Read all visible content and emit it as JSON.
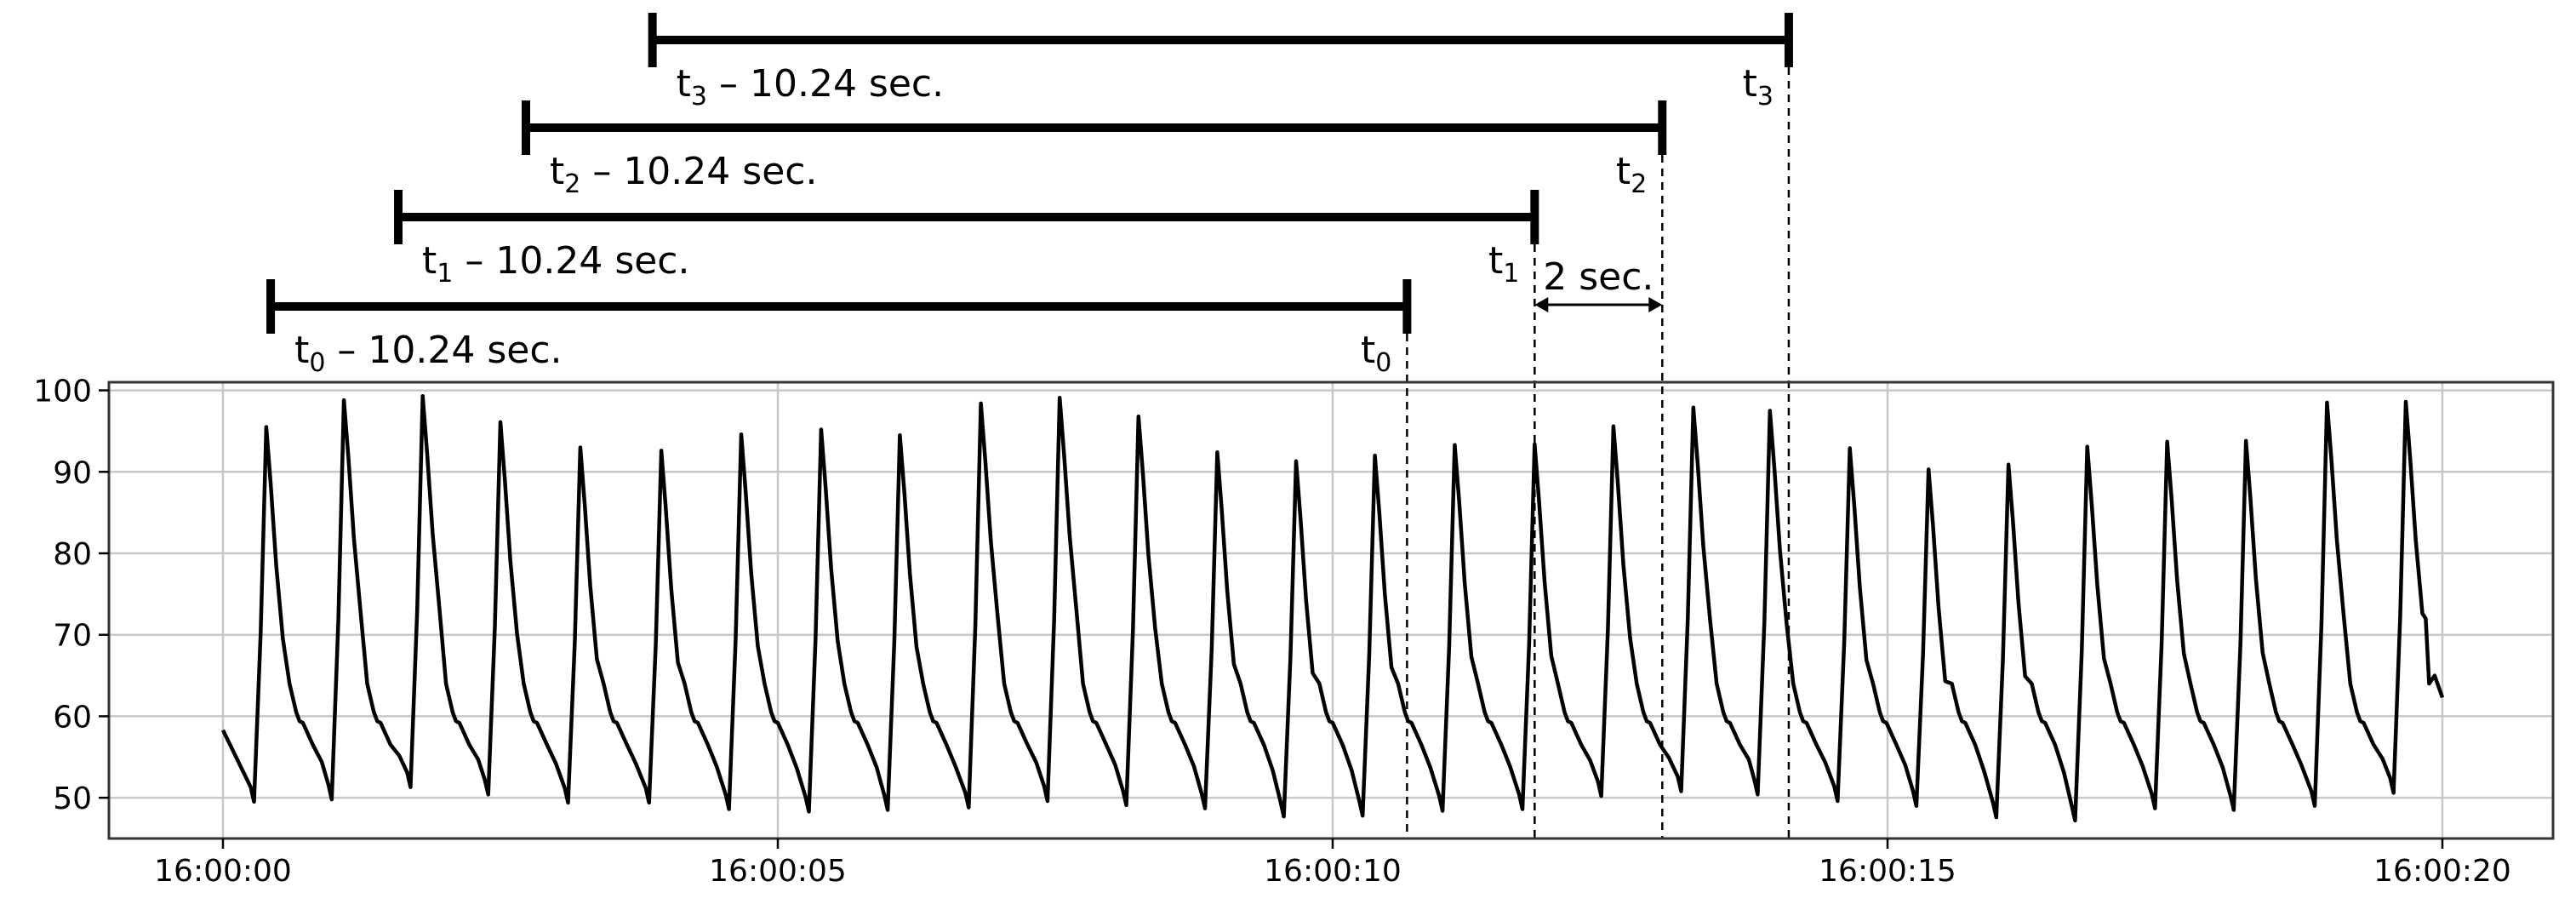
{
  "chart_data": {
    "type": "line",
    "x_tick_labels": [
      "16:00:00",
      "16:00:05",
      "16:00:10",
      "16:00:15",
      "16:00:20"
    ],
    "x_tick_values": [
      0,
      5,
      10,
      15,
      20
    ],
    "y_ticks": [
      50,
      60,
      70,
      80,
      90,
      100
    ],
    "xlim": [
      -1,
      21
    ],
    "ylim": [
      45,
      101
    ],
    "grid": true,
    "series": [
      {
        "color": "#000000",
        "baseline": 59,
        "peaks": [
          {
            "t": 0.39,
            "peak": 95.5,
            "trough": 49.5
          },
          {
            "t": 1.09,
            "peak": 98.8,
            "trough": 49.8
          },
          {
            "t": 1.8,
            "peak": 99.3,
            "trough": 51.3
          },
          {
            "t": 2.5,
            "peak": 96.1,
            "trough": 50.4
          },
          {
            "t": 3.22,
            "peak": 93.0,
            "trough": 49.4
          },
          {
            "t": 3.95,
            "peak": 92.6,
            "trough": 49.4
          },
          {
            "t": 4.67,
            "peak": 94.6,
            "trough": 48.6
          },
          {
            "t": 5.39,
            "peak": 95.2,
            "trough": 48.3
          },
          {
            "t": 6.1,
            "peak": 94.5,
            "trough": 48.5
          },
          {
            "t": 6.83,
            "peak": 98.4,
            "trough": 48.8
          },
          {
            "t": 7.54,
            "peak": 99.1,
            "trough": 49.6
          },
          {
            "t": 8.25,
            "peak": 96.8,
            "trough": 49.1
          },
          {
            "t": 8.96,
            "peak": 92.4,
            "trough": 48.7
          },
          {
            "t": 9.67,
            "peak": 91.3,
            "trough": 47.7
          },
          {
            "t": 10.38,
            "peak": 92.0,
            "trough": 47.8
          },
          {
            "t": 11.1,
            "peak": 93.3,
            "trough": 48.4
          },
          {
            "t": 11.82,
            "peak": 93.4,
            "trough": 48.6
          },
          {
            "t": 12.53,
            "peak": 95.6,
            "trough": 50.2
          },
          {
            "t": 13.25,
            "peak": 97.9,
            "trough": 50.8
          },
          {
            "t": 13.94,
            "peak": 97.5,
            "trough": 50.4
          },
          {
            "t": 14.66,
            "peak": 92.9,
            "trough": 49.6
          },
          {
            "t": 15.37,
            "peak": 90.3,
            "trough": 49.0
          },
          {
            "t": 16.09,
            "peak": 90.9,
            "trough": 47.6
          },
          {
            "t": 16.8,
            "peak": 93.1,
            "trough": 47.2
          },
          {
            "t": 17.52,
            "peak": 93.7,
            "trough": 48.7
          },
          {
            "t": 18.23,
            "peak": 93.8,
            "trough": 48.5
          },
          {
            "t": 18.96,
            "peak": 98.5,
            "trough": 49.0
          },
          {
            "t": 19.67,
            "peak": 98.6,
            "trough": 50.6
          }
        ],
        "start": {
          "t": 0.0,
          "value": 58.3
        },
        "end": {
          "t": 20.0,
          "value": 62.3
        }
      }
    ],
    "window_length_label": "10.24 sec.",
    "windows": [
      {
        "t": 10.67,
        "end_label": "t",
        "start_label": "t",
        "subscript": "0",
        "minus": "–"
      },
      {
        "t": 11.82,
        "end_label": "t",
        "start_label": "t",
        "subscript": "1",
        "minus": "–"
      },
      {
        "t": 12.97,
        "end_label": "t",
        "start_label": "t",
        "subscript": "2",
        "minus": "–"
      },
      {
        "t": 14.11,
        "end_label": "t",
        "start_label": "t",
        "subscript": "3",
        "minus": "–"
      }
    ],
    "step_annotation": {
      "label": "2 sec.",
      "from_window": 1,
      "to_window": 2
    }
  }
}
